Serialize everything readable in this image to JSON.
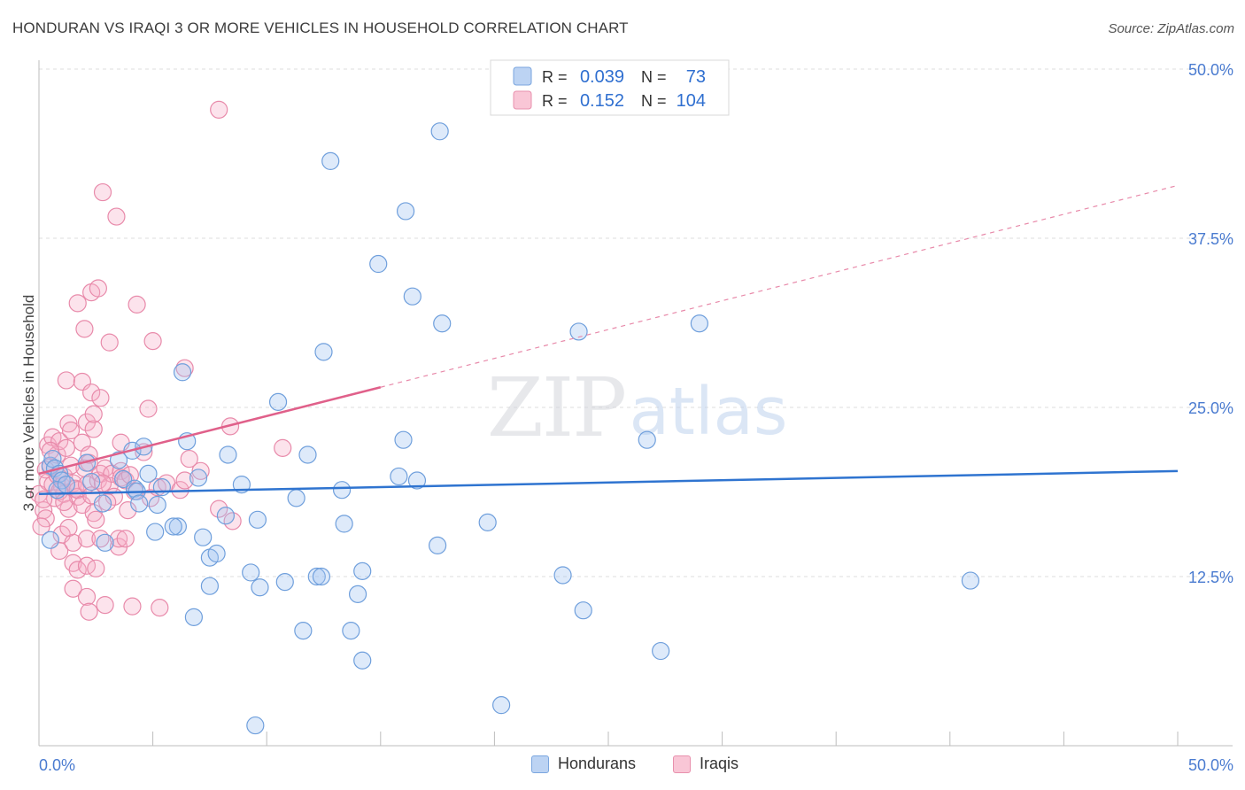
{
  "title": "HONDURAN VS IRAQI 3 OR MORE VEHICLES IN HOUSEHOLD CORRELATION CHART",
  "source": "Source: ZipAtlas.com",
  "watermark": {
    "zip": "ZIP",
    "atlas": "atlas"
  },
  "legend_top": [
    {
      "r_label": "R =",
      "r_value": "0.039",
      "n_label": "N =",
      "n_value": "73"
    },
    {
      "r_label": "R =",
      "r_value": "0.152",
      "n_label": "N =",
      "n_value": "104"
    }
  ],
  "chart_data": {
    "type": "scatter",
    "title": "HONDURAN VS IRAQI 3 OR MORE VEHICLES IN HOUSEHOLD CORRELATION CHART",
    "xlabel": "",
    "ylabel": "3 or more Vehicles in Household",
    "xlim": [
      0,
      50
    ],
    "ylim": [
      0,
      50
    ],
    "x_tick_labels": [
      "0.0%",
      "50.0%"
    ],
    "y_ticks": [
      12.5,
      25.0,
      37.5,
      50.0
    ],
    "y_tick_labels": [
      "12.5%",
      "25.0%",
      "37.5%",
      "50.0%"
    ],
    "grid": true,
    "legend_position": "top-center",
    "colors": {
      "hondurans_fill": "rgba(160,195,240,0.35)",
      "hondurans_stroke": "#6f9fdc",
      "hondurans_line": "#2f74d0",
      "iraqis_fill": "rgba(245,175,200,0.35)",
      "iraqis_stroke": "#e88aaa",
      "iraqis_line": "#e0608a",
      "tick_label": "#4a7bd0"
    },
    "series": [
      {
        "name": "Hondurans",
        "r": 0.039,
        "n": 73,
        "trend": {
          "x1": 0.0,
          "y1": 18.6,
          "x2": 50.0,
          "y2": 20.3,
          "dashed_from": null
        },
        "points": [
          [
            0.5,
            20.7
          ],
          [
            0.6,
            21.2
          ],
          [
            0.7,
            20.5
          ],
          [
            0.9,
            20.1
          ],
          [
            1.0,
            19.6
          ],
          [
            0.8,
            18.9
          ],
          [
            1.2,
            19.3
          ],
          [
            0.5,
            15.2
          ],
          [
            2.1,
            20.9
          ],
          [
            2.3,
            19.5
          ],
          [
            2.8,
            17.9
          ],
          [
            2.9,
            15.0
          ],
          [
            3.7,
            19.7
          ],
          [
            3.5,
            21.1
          ],
          [
            4.1,
            21.8
          ],
          [
            4.2,
            19.0
          ],
          [
            4.3,
            18.8
          ],
          [
            4.4,
            17.9
          ],
          [
            4.6,
            22.1
          ],
          [
            4.8,
            20.1
          ],
          [
            5.2,
            17.8
          ],
          [
            5.4,
            19.1
          ],
          [
            5.1,
            15.8
          ],
          [
            6.1,
            16.2
          ],
          [
            5.9,
            16.2
          ],
          [
            6.5,
            22.5
          ],
          [
            6.3,
            27.6
          ],
          [
            7.0,
            19.8
          ],
          [
            7.2,
            15.4
          ],
          [
            7.5,
            13.9
          ],
          [
            7.8,
            14.2
          ],
          [
            7.5,
            11.8
          ],
          [
            6.8,
            9.5
          ],
          [
            8.3,
            21.5
          ],
          [
            8.2,
            17.0
          ],
          [
            8.9,
            19.3
          ],
          [
            9.6,
            16.7
          ],
          [
            9.3,
            12.8
          ],
          [
            9.7,
            11.7
          ],
          [
            10.5,
            25.4
          ],
          [
            11.3,
            18.3
          ],
          [
            10.8,
            12.1
          ],
          [
            11.6,
            8.5
          ],
          [
            11.8,
            21.5
          ],
          [
            12.2,
            12.5
          ],
          [
            12.4,
            12.5
          ],
          [
            12.5,
            29.1
          ],
          [
            12.8,
            43.2
          ],
          [
            13.3,
            18.9
          ],
          [
            13.4,
            16.4
          ],
          [
            13.7,
            8.5
          ],
          [
            14.0,
            11.2
          ],
          [
            14.2,
            6.3
          ],
          [
            14.2,
            12.9
          ],
          [
            14.9,
            35.6
          ],
          [
            15.8,
            19.9
          ],
          [
            16.0,
            22.6
          ],
          [
            16.6,
            19.6
          ],
          [
            16.1,
            39.5
          ],
          [
            16.4,
            33.2
          ],
          [
            17.6,
            45.4
          ],
          [
            17.5,
            14.8
          ],
          [
            17.7,
            31.2
          ],
          [
            19.7,
            16.5
          ],
          [
            20.3,
            3.0
          ],
          [
            23.0,
            12.6
          ],
          [
            23.7,
            30.6
          ],
          [
            23.9,
            10.0
          ],
          [
            26.7,
            22.6
          ],
          [
            27.3,
            7.0
          ],
          [
            29.0,
            31.2
          ],
          [
            40.9,
            12.2
          ],
          [
            9.5,
            1.5
          ]
        ]
      },
      {
        "name": "Iraqis",
        "r": 0.152,
        "n": 104,
        "trend": {
          "x1": 0.0,
          "y1": 20.1,
          "x2": 50.0,
          "y2": 41.4,
          "dashed_from": 15.0
        },
        "points": [
          [
            0.0,
            18.6
          ],
          [
            0.2,
            17.4
          ],
          [
            0.3,
            16.8
          ],
          [
            0.4,
            19.5
          ],
          [
            0.4,
            22.2
          ],
          [
            0.5,
            20.6
          ],
          [
            0.6,
            19.3
          ],
          [
            0.7,
            18.3
          ],
          [
            0.6,
            22.8
          ],
          [
            0.8,
            21.5
          ],
          [
            0.8,
            20.0
          ],
          [
            0.9,
            22.5
          ],
          [
            1.0,
            19.2
          ],
          [
            1.1,
            18.6
          ],
          [
            1.2,
            22.0
          ],
          [
            1.3,
            23.8
          ],
          [
            0.9,
            14.4
          ],
          [
            1.0,
            15.6
          ],
          [
            1.1,
            19.9
          ],
          [
            1.2,
            27.0
          ],
          [
            1.3,
            17.5
          ],
          [
            1.4,
            23.3
          ],
          [
            1.4,
            20.7
          ],
          [
            1.5,
            19.4
          ],
          [
            1.6,
            19.0
          ],
          [
            1.7,
            18.4
          ],
          [
            1.5,
            15.0
          ],
          [
            1.5,
            13.5
          ],
          [
            1.5,
            11.6
          ],
          [
            1.7,
            32.7
          ],
          [
            1.7,
            18.9
          ],
          [
            1.7,
            13.0
          ],
          [
            1.9,
            26.9
          ],
          [
            1.9,
            22.4
          ],
          [
            2.0,
            20.5
          ],
          [
            1.9,
            17.8
          ],
          [
            2.0,
            30.8
          ],
          [
            2.1,
            23.9
          ],
          [
            2.1,
            19.3
          ],
          [
            2.1,
            15.3
          ],
          [
            2.1,
            13.3
          ],
          [
            2.1,
            11.0
          ],
          [
            2.2,
            9.9
          ],
          [
            2.2,
            20.9
          ],
          [
            2.3,
            18.5
          ],
          [
            2.3,
            26.1
          ],
          [
            2.3,
            33.5
          ],
          [
            2.4,
            23.4
          ],
          [
            2.4,
            24.5
          ],
          [
            2.4,
            17.2
          ],
          [
            2.5,
            16.7
          ],
          [
            2.5,
            13.1
          ],
          [
            2.6,
            19.6
          ],
          [
            2.6,
            33.8
          ],
          [
            2.7,
            20.1
          ],
          [
            2.7,
            25.7
          ],
          [
            2.7,
            15.3
          ],
          [
            2.8,
            40.9
          ],
          [
            2.9,
            10.4
          ],
          [
            2.9,
            20.5
          ],
          [
            3.1,
            29.8
          ],
          [
            3.1,
            19.2
          ],
          [
            3.2,
            20.1
          ],
          [
            3.3,
            18.4
          ],
          [
            3.4,
            39.1
          ],
          [
            3.5,
            14.7
          ],
          [
            3.5,
            15.3
          ],
          [
            3.6,
            22.4
          ],
          [
            3.6,
            20.3
          ],
          [
            3.6,
            19.8
          ],
          [
            3.8,
            19.6
          ],
          [
            3.8,
            15.3
          ],
          [
            3.9,
            17.4
          ],
          [
            4.0,
            20.0
          ],
          [
            4.1,
            10.3
          ],
          [
            4.2,
            18.8
          ],
          [
            4.3,
            32.6
          ],
          [
            4.6,
            21.7
          ],
          [
            4.8,
            24.9
          ],
          [
            4.9,
            18.3
          ],
          [
            5.0,
            29.9
          ],
          [
            5.3,
            10.2
          ],
          [
            5.2,
            19.1
          ],
          [
            5.6,
            19.4
          ],
          [
            6.2,
            18.9
          ],
          [
            6.4,
            19.6
          ],
          [
            6.4,
            27.9
          ],
          [
            6.6,
            21.2
          ],
          [
            7.1,
            20.3
          ],
          [
            7.9,
            17.5
          ],
          [
            7.9,
            47.0
          ],
          [
            8.4,
            23.6
          ],
          [
            8.5,
            16.6
          ],
          [
            10.7,
            22.0
          ],
          [
            0.1,
            16.2
          ],
          [
            0.2,
            18.2
          ],
          [
            0.3,
            20.4
          ],
          [
            0.5,
            21.8
          ],
          [
            0.9,
            18.8
          ],
          [
            1.1,
            18.0
          ],
          [
            1.3,
            16.1
          ],
          [
            2.8,
            19.4
          ],
          [
            3.0,
            18.0
          ],
          [
            2.2,
            21.5
          ]
        ]
      }
    ]
  },
  "legend_bottom": [
    {
      "label": "Hondurans"
    },
    {
      "label": "Iraqis"
    }
  ]
}
